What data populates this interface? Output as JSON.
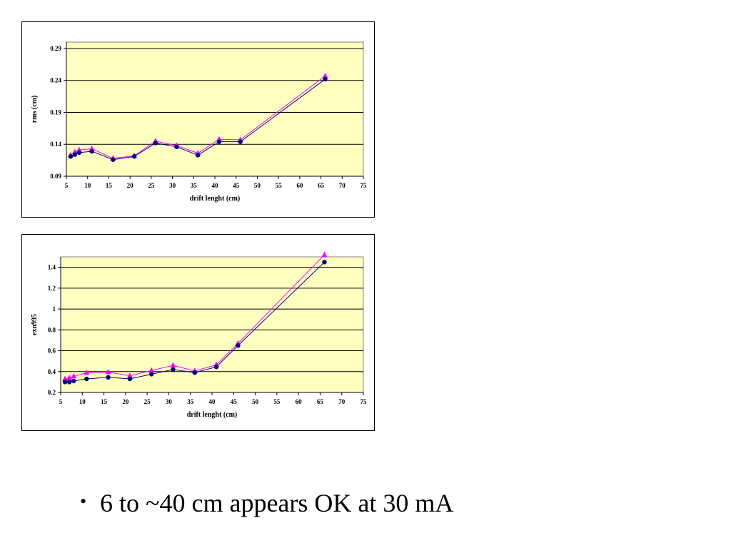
{
  "colors": {
    "plot_bg": "#FFFFC0",
    "series_navy": "#000080",
    "series_magenta": "#FF00FF",
    "gridline": "#000000"
  },
  "chart_data": [
    {
      "type": "line",
      "xlabel": "drift lenght (cm)",
      "ylabel": "rms (cm)",
      "xlim": [
        5,
        75
      ],
      "ylim": [
        0.09,
        0.3
      ],
      "x_ticks": [
        "5",
        "10",
        "15",
        "20",
        "25",
        "30",
        "35",
        "40",
        "45",
        "50",
        "55",
        "60",
        "65",
        "70",
        "75"
      ],
      "y_ticks": [
        "0.09",
        "0.14",
        "0.19",
        "0.24",
        "0.29"
      ],
      "grid": "horizontal",
      "legend": "none",
      "series": [
        {
          "color": "#000080",
          "marker": "circle",
          "x": [
            6,
            7,
            8,
            11,
            16,
            21,
            26,
            31,
            36,
            41,
            46,
            66
          ],
          "y": [
            0.121,
            0.124,
            0.127,
            0.129,
            0.116,
            0.121,
            0.142,
            0.136,
            0.123,
            0.144,
            0.144,
            0.242
          ]
        },
        {
          "color": "#FF00FF",
          "marker": "triangle",
          "x": [
            6,
            7,
            8,
            11,
            16,
            21,
            26,
            31,
            36,
            41,
            46,
            66
          ],
          "y": [
            0.123,
            0.128,
            0.131,
            0.133,
            0.118,
            0.122,
            0.145,
            0.138,
            0.126,
            0.148,
            0.147,
            0.247
          ]
        }
      ]
    },
    {
      "type": "line",
      "xlabel": "drift lenght (cm)",
      "ylabel": "exn995",
      "xlim": [
        5,
        75
      ],
      "ylim": [
        0.2,
        1.5
      ],
      "x_ticks": [
        "5",
        "10",
        "15",
        "20",
        "25",
        "30",
        "35",
        "40",
        "45",
        "50",
        "55",
        "60",
        "65",
        "70",
        "75"
      ],
      "y_ticks": [
        "0.2",
        "0.4",
        "0.6",
        "0.8",
        "1",
        "1.2",
        "1.4"
      ],
      "grid": "horizontal",
      "legend": "none",
      "series": [
        {
          "color": "#000080",
          "marker": "circle",
          "x": [
            6,
            7,
            8,
            11,
            16,
            21,
            26,
            31,
            36,
            41,
            46,
            66
          ],
          "y": [
            0.3,
            0.3,
            0.31,
            0.33,
            0.345,
            0.33,
            0.375,
            0.42,
            0.39,
            0.445,
            0.65,
            1.45
          ]
        },
        {
          "color": "#FF00FF",
          "marker": "triangle",
          "x": [
            6,
            7,
            8,
            11,
            16,
            21,
            26,
            31,
            36,
            41,
            46,
            66
          ],
          "y": [
            0.33,
            0.34,
            0.355,
            0.39,
            0.395,
            0.36,
            0.41,
            0.46,
            0.405,
            0.465,
            0.67,
            1.52
          ]
        }
      ]
    }
  ],
  "bullets": [
    {
      "text": "6 to ~40 cm appears OK  at 30 mA"
    }
  ]
}
